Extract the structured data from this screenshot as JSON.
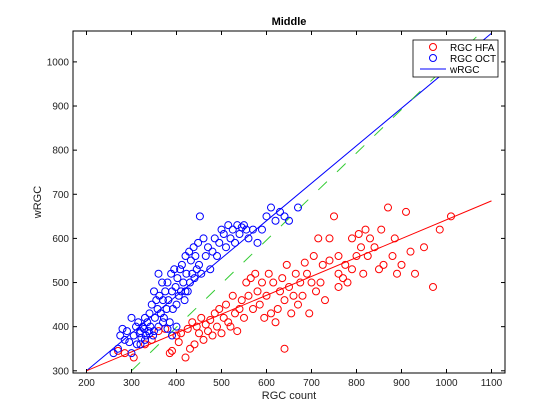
{
  "chart_data": {
    "type": "scatter",
    "title": "Middle",
    "xlabel": "RGC count",
    "ylabel": "wRGC",
    "xlim": [
      170,
      1130
    ],
    "ylim": [
      295,
      1070
    ],
    "xticks": [
      200,
      300,
      400,
      500,
      600,
      700,
      800,
      900,
      1000,
      1100
    ],
    "yticks": [
      300,
      400,
      500,
      600,
      700,
      800,
      900,
      1000
    ],
    "grid": false,
    "legend_position": "top-right",
    "series": [
      {
        "name": "RGC HFA",
        "kind": "scatter",
        "marker": "circle-open",
        "color": "#ff0000",
        "points": [
          [
            270,
            345
          ],
          [
            285,
            340
          ],
          [
            305,
            330
          ],
          [
            330,
            360
          ],
          [
            345,
            370
          ],
          [
            360,
            390
          ],
          [
            375,
            395
          ],
          [
            385,
            340
          ],
          [
            390,
            345
          ],
          [
            400,
            380
          ],
          [
            405,
            365
          ],
          [
            410,
            385
          ],
          [
            420,
            330
          ],
          [
            425,
            395
          ],
          [
            430,
            350
          ],
          [
            435,
            410
          ],
          [
            440,
            360
          ],
          [
            445,
            400
          ],
          [
            450,
            385
          ],
          [
            455,
            420
          ],
          [
            460,
            370
          ],
          [
            465,
            405
          ],
          [
            470,
            390
          ],
          [
            475,
            415
          ],
          [
            480,
            380
          ],
          [
            485,
            430
          ],
          [
            490,
            400
          ],
          [
            495,
            440
          ],
          [
            500,
            385
          ],
          [
            505,
            420
          ],
          [
            510,
            450
          ],
          [
            515,
            410
          ],
          [
            520,
            400
          ],
          [
            525,
            470
          ],
          [
            530,
            430
          ],
          [
            535,
            390
          ],
          [
            540,
            440
          ],
          [
            545,
            460
          ],
          [
            550,
            420
          ],
          [
            555,
            500
          ],
          [
            560,
            470
          ],
          [
            565,
            510
          ],
          [
            570,
            440
          ],
          [
            575,
            520
          ],
          [
            580,
            480
          ],
          [
            585,
            450
          ],
          [
            590,
            500
          ],
          [
            595,
            420
          ],
          [
            600,
            470
          ],
          [
            605,
            520
          ],
          [
            610,
            430
          ],
          [
            615,
            500
          ],
          [
            620,
            410
          ],
          [
            625,
            440
          ],
          [
            630,
            480
          ],
          [
            635,
            510
          ],
          [
            640,
            460
          ],
          [
            645,
            540
          ],
          [
            650,
            490
          ],
          [
            655,
            430
          ],
          [
            660,
            470
          ],
          [
            665,
            520
          ],
          [
            670,
            450
          ],
          [
            675,
            500
          ],
          [
            680,
            470
          ],
          [
            685,
            545
          ],
          [
            690,
            520
          ],
          [
            695,
            430
          ],
          [
            700,
            500
          ],
          [
            705,
            560
          ],
          [
            710,
            480
          ],
          [
            715,
            600
          ],
          [
            720,
            500
          ],
          [
            725,
            540
          ],
          [
            730,
            460
          ],
          [
            740,
            600
          ],
          [
            750,
            650
          ],
          [
            760,
            520
          ],
          [
            770,
            510
          ],
          [
            775,
            540
          ],
          [
            780,
            500
          ],
          [
            790,
            600
          ],
          [
            800,
            560
          ],
          [
            805,
            610
          ],
          [
            810,
            580
          ],
          [
            815,
            520
          ],
          [
            820,
            620
          ],
          [
            825,
            560
          ],
          [
            830,
            600
          ],
          [
            840,
            580
          ],
          [
            850,
            530
          ],
          [
            855,
            620
          ],
          [
            860,
            540
          ],
          [
            870,
            670
          ],
          [
            880,
            560
          ],
          [
            885,
            600
          ],
          [
            890,
            520
          ],
          [
            900,
            540
          ],
          [
            910,
            660
          ],
          [
            920,
            570
          ],
          [
            930,
            520
          ],
          [
            950,
            580
          ],
          [
            970,
            490
          ],
          [
            985,
            620
          ],
          [
            1010,
            650
          ],
          [
            740,
            550
          ],
          [
            760,
            560
          ],
          [
            790,
            530
          ],
          [
            760,
            490
          ],
          [
            640,
            350
          ]
        ]
      },
      {
        "name": "RGC OCT",
        "kind": "scatter",
        "marker": "circle-open",
        "color": "#0000ff",
        "points": [
          [
            260,
            340
          ],
          [
            270,
            350
          ],
          [
            275,
            380
          ],
          [
            280,
            395
          ],
          [
            285,
            370
          ],
          [
            290,
            390
          ],
          [
            295,
            365
          ],
          [
            300,
            420
          ],
          [
            305,
            380
          ],
          [
            310,
            400
          ],
          [
            312,
            360
          ],
          [
            315,
            410
          ],
          [
            318,
            385
          ],
          [
            320,
            390
          ],
          [
            322,
            375
          ],
          [
            325,
            400
          ],
          [
            328,
            395
          ],
          [
            330,
            420
          ],
          [
            332,
            380
          ],
          [
            335,
            410
          ],
          [
            338,
            390
          ],
          [
            340,
            430
          ],
          [
            342,
            400
          ],
          [
            345,
            450
          ],
          [
            348,
            380
          ],
          [
            350,
            480
          ],
          [
            352,
            420
          ],
          [
            355,
            460
          ],
          [
            358,
            440
          ],
          [
            360,
            520
          ],
          [
            362,
            470
          ],
          [
            365,
            430
          ],
          [
            368,
            500
          ],
          [
            370,
            460
          ],
          [
            372,
            420
          ],
          [
            375,
            480
          ],
          [
            378,
            440
          ],
          [
            380,
            500
          ],
          [
            382,
            460
          ],
          [
            385,
            410
          ],
          [
            388,
            520
          ],
          [
            390,
            480
          ],
          [
            392,
            440
          ],
          [
            395,
            530
          ],
          [
            398,
            490
          ],
          [
            400,
            450
          ],
          [
            402,
            510
          ],
          [
            405,
            470
          ],
          [
            408,
            530
          ],
          [
            410,
            480
          ],
          [
            412,
            540
          ],
          [
            415,
            500
          ],
          [
            418,
            460
          ],
          [
            420,
            560
          ],
          [
            422,
            520
          ],
          [
            425,
            480
          ],
          [
            428,
            570
          ],
          [
            430,
            500
          ],
          [
            432,
            550
          ],
          [
            435,
            520
          ],
          [
            438,
            580
          ],
          [
            440,
            510
          ],
          [
            442,
            560
          ],
          [
            445,
            530
          ],
          [
            448,
            590
          ],
          [
            450,
            540
          ],
          [
            452,
            650
          ],
          [
            455,
            520
          ],
          [
            460,
            600
          ],
          [
            465,
            560
          ],
          [
            470,
            580
          ],
          [
            475,
            530
          ],
          [
            480,
            570
          ],
          [
            485,
            600
          ],
          [
            490,
            560
          ],
          [
            495,
            590
          ],
          [
            500,
            620
          ],
          [
            505,
            610
          ],
          [
            510,
            580
          ],
          [
            515,
            630
          ],
          [
            520,
            600
          ],
          [
            525,
            620
          ],
          [
            530,
            590
          ],
          [
            535,
            630
          ],
          [
            540,
            610
          ],
          [
            545,
            625
          ],
          [
            550,
            630
          ],
          [
            555,
            620
          ],
          [
            560,
            600
          ],
          [
            570,
            620
          ],
          [
            580,
            590
          ],
          [
            590,
            620
          ],
          [
            600,
            650
          ],
          [
            610,
            670
          ],
          [
            620,
            640
          ],
          [
            630,
            660
          ],
          [
            640,
            650
          ],
          [
            650,
            640
          ],
          [
            670,
            670
          ],
          [
            420,
            480
          ],
          [
            400,
            400
          ],
          [
            390,
            380
          ],
          [
            380,
            395
          ],
          [
            370,
            410
          ],
          [
            360,
            400
          ],
          [
            350,
            390
          ],
          [
            340,
            385
          ],
          [
            330,
            370
          ],
          [
            320,
            360
          ],
          [
            300,
            340
          ]
        ]
      },
      {
        "name": "wRGC",
        "kind": "line",
        "color": "#0000ff",
        "points": [
          [
            200,
            300
          ],
          [
            1100,
            1065
          ]
        ]
      },
      {
        "kind": "line",
        "color": "#ff0000",
        "points": [
          [
            200,
            300
          ],
          [
            1100,
            685
          ]
        ]
      },
      {
        "kind": "line",
        "dash": true,
        "color": "#33cc33",
        "points": [
          [
            300,
            300
          ],
          [
            1080,
            1070
          ]
        ]
      }
    ]
  }
}
